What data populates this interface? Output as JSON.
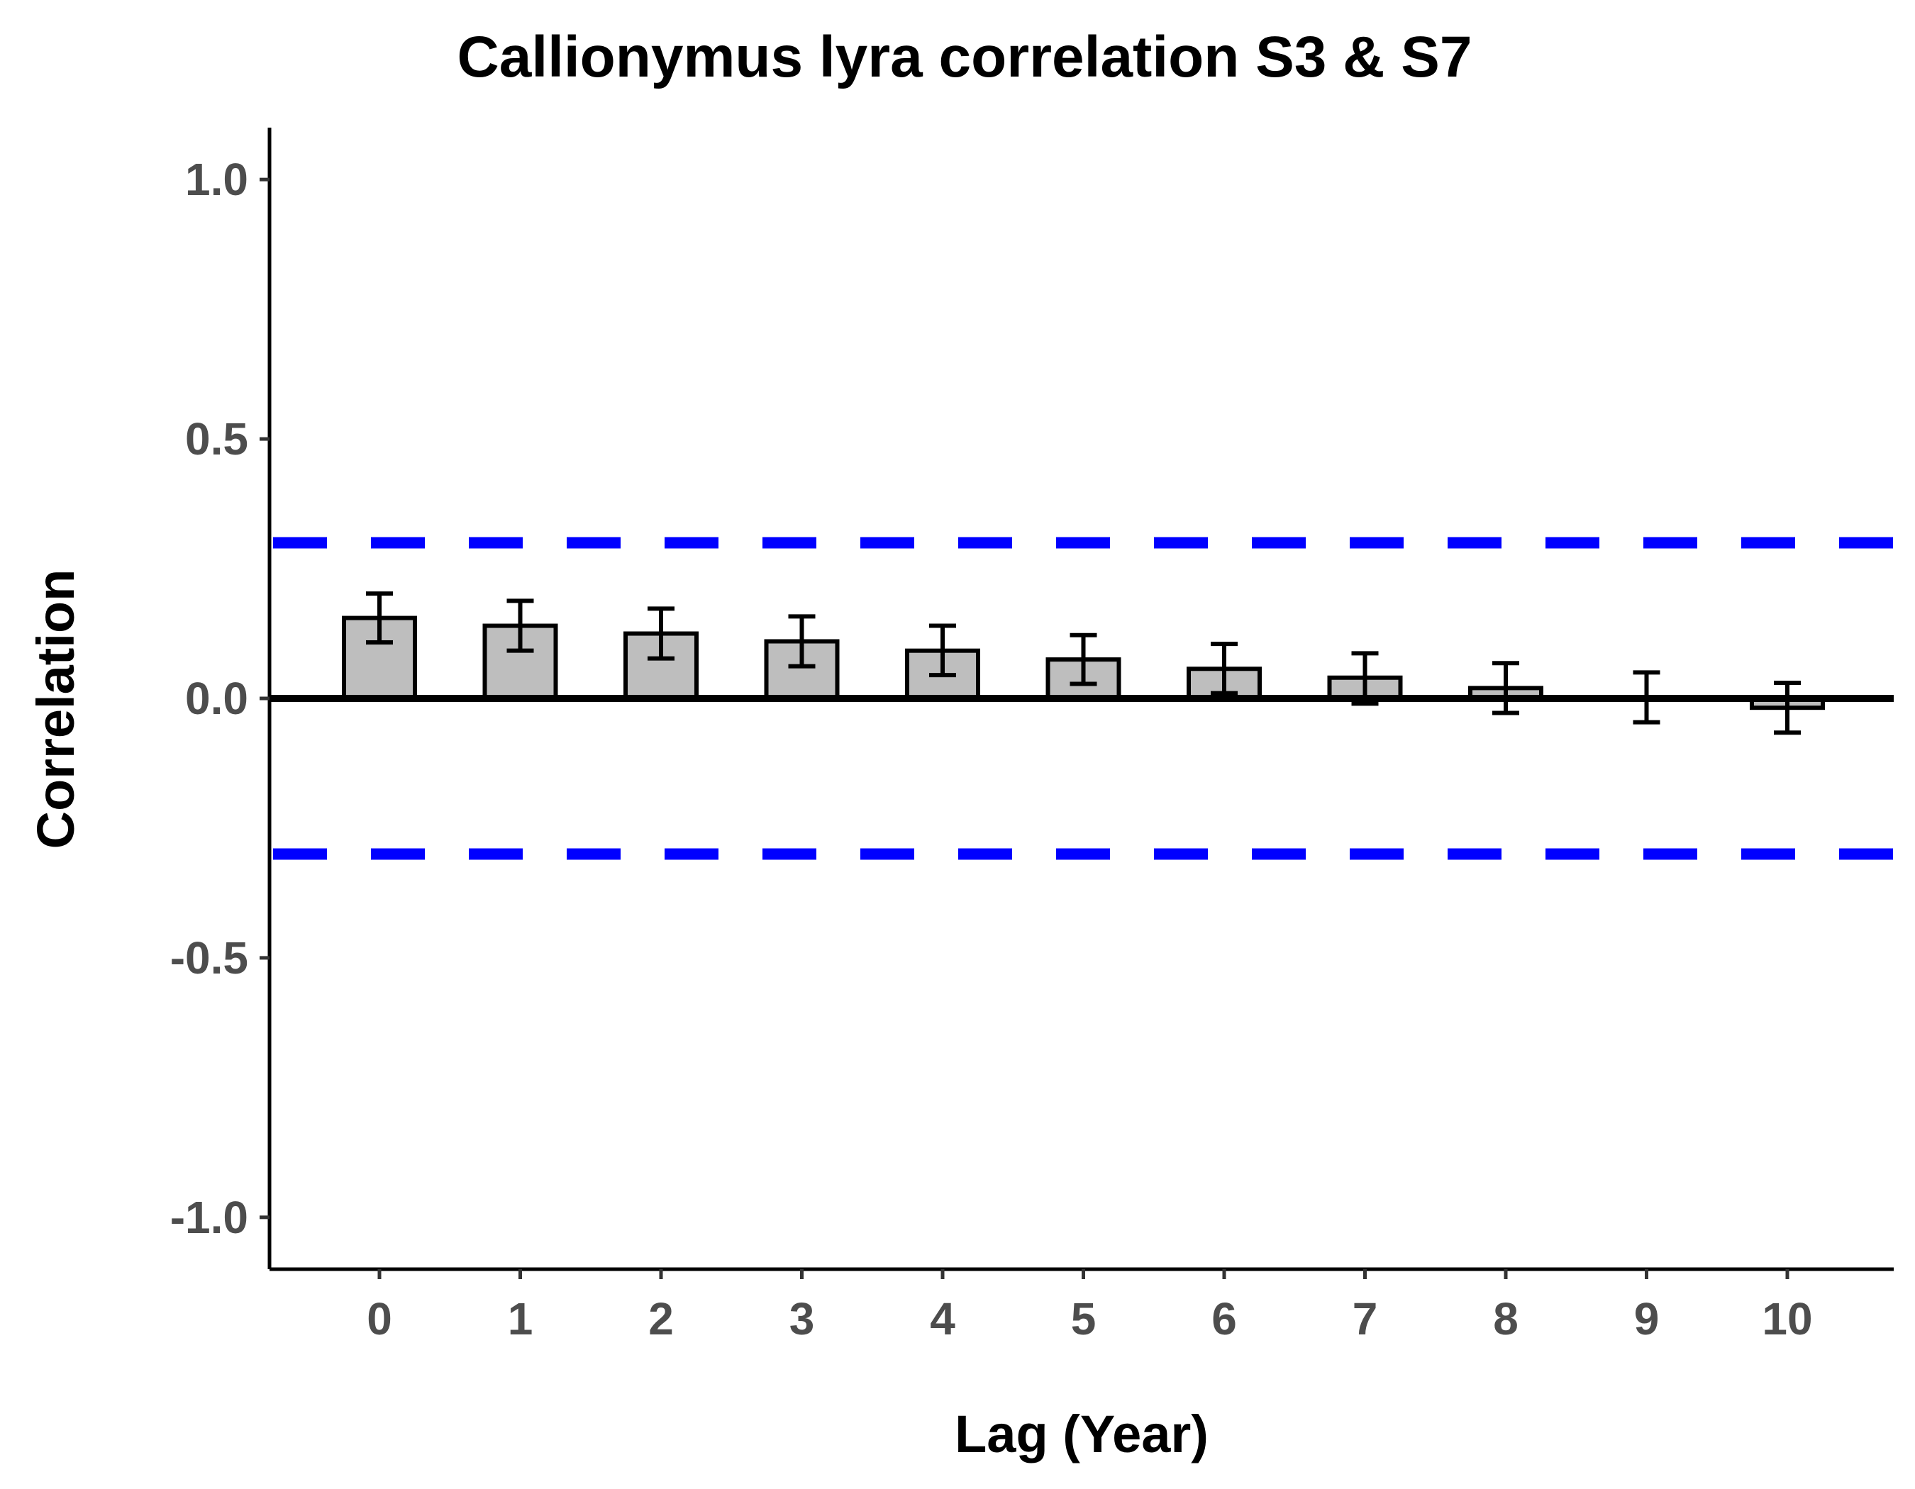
{
  "chart_data": {
    "type": "bar",
    "title": "Callionymus lyra correlation S3 & S7",
    "xlabel": "Lag (Year)",
    "ylabel": "Correlation",
    "ylim": [
      -1.1,
      1.1
    ],
    "y_ticks": [
      1.0,
      0.5,
      0.0,
      -0.5,
      -1.0
    ],
    "y_tick_labels": [
      "1.0",
      "0.5",
      "0.0",
      "-0.5",
      "-1.0"
    ],
    "categories": [
      "0",
      "1",
      "2",
      "3",
      "4",
      "5",
      "6",
      "7",
      "8",
      "9",
      "10"
    ],
    "values": [
      0.155,
      0.14,
      0.125,
      0.11,
      0.092,
      0.075,
      0.057,
      0.04,
      0.02,
      0.002,
      -0.018
    ],
    "error_low": [
      0.108,
      0.092,
      0.077,
      0.062,
      0.045,
      0.028,
      0.01,
      -0.01,
      -0.028,
      -0.046,
      -0.066
    ],
    "error_high": [
      0.202,
      0.188,
      0.173,
      0.158,
      0.14,
      0.122,
      0.105,
      0.087,
      0.068,
      0.05,
      0.03
    ],
    "confidence_bounds": [
      0.3,
      -0.3
    ],
    "grid": false,
    "colors": {
      "bar_fill": "#bebebe",
      "bar_stroke": "#000000",
      "confidence_line": "#0000ff",
      "zero_line": "#000000"
    }
  }
}
